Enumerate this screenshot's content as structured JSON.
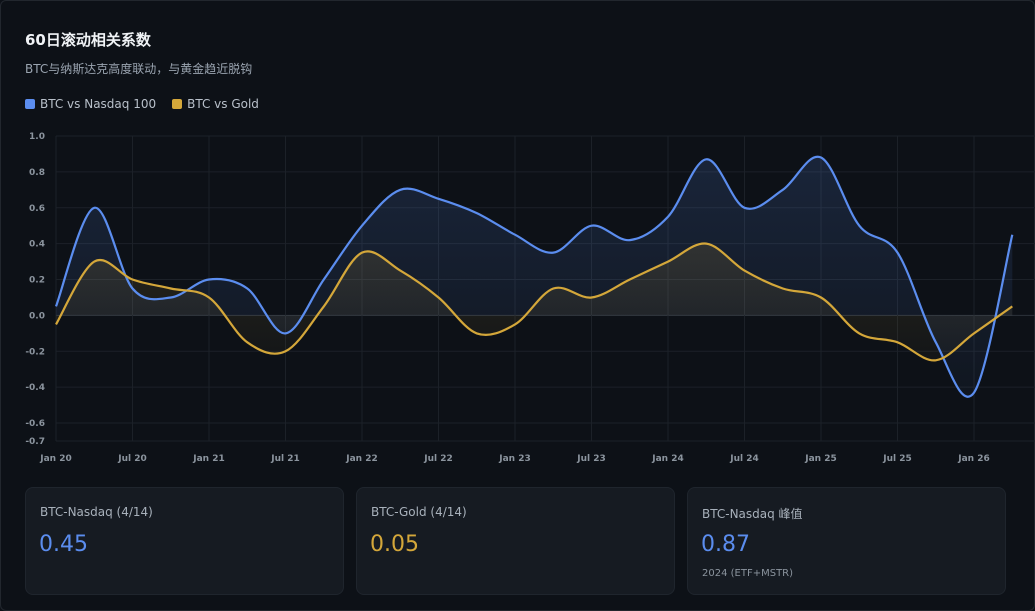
{
  "title": "60日滚动相关系数",
  "subtitle": "BTC与纳斯达克高度联动，与黄金趋近脱钩",
  "colors": {
    "nasdaq": "#5b8def",
    "gold": "#d4a73a",
    "background": "#0d1117",
    "grid": "#1e242c"
  },
  "chart_data": {
    "type": "line",
    "title": "60日滚动相关系数",
    "ylim": [
      -0.7,
      1.0
    ],
    "y_ticks": [
      "1.0",
      "0.8",
      "0.6",
      "0.4",
      "0.2",
      "0.0",
      "-0.2",
      "-0.4",
      "-0.6",
      "-0.7"
    ],
    "x_ticks": [
      "Jan 20",
      "Jul 20",
      "Jan 21",
      "Jul 21",
      "Jan 22",
      "Jul 22",
      "Jan 23",
      "Jul 23",
      "Jan 24",
      "Jul 24",
      "Jan 25",
      "Jul 25",
      "Jan 26"
    ],
    "grid": true,
    "legend_position": "top-left",
    "series": [
      {
        "name": "BTC vs Nasdaq 100",
        "color": "#5b8def",
        "points": [
          [
            0,
            0.05
          ],
          [
            0.5,
            0.6
          ],
          [
            1,
            0.15
          ],
          [
            1.5,
            0.1
          ],
          [
            2,
            0.2
          ],
          [
            2.5,
            0.15
          ],
          [
            3,
            -0.1
          ],
          [
            3.5,
            0.2
          ],
          [
            4,
            0.5
          ],
          [
            4.5,
            0.7
          ],
          [
            5,
            0.65
          ],
          [
            5.5,
            0.57
          ],
          [
            6,
            0.45
          ],
          [
            6.5,
            0.35
          ],
          [
            7,
            0.5
          ],
          [
            7.5,
            0.42
          ],
          [
            8,
            0.55
          ],
          [
            8.5,
            0.87
          ],
          [
            9,
            0.6
          ],
          [
            9.5,
            0.7
          ],
          [
            10,
            0.88
          ],
          [
            10.5,
            0.5
          ],
          [
            11,
            0.35
          ],
          [
            11.5,
            -0.15
          ],
          [
            12,
            -0.43
          ],
          [
            12.5,
            0.45
          ]
        ]
      },
      {
        "name": "BTC vs Gold",
        "color": "#d4a73a",
        "points": [
          [
            0,
            -0.05
          ],
          [
            0.5,
            0.3
          ],
          [
            1,
            0.2
          ],
          [
            1.5,
            0.15
          ],
          [
            2,
            0.1
          ],
          [
            2.5,
            -0.15
          ],
          [
            3,
            -0.2
          ],
          [
            3.5,
            0.05
          ],
          [
            4,
            0.35
          ],
          [
            4.5,
            0.25
          ],
          [
            5,
            0.1
          ],
          [
            5.5,
            -0.1
          ],
          [
            6,
            -0.05
          ],
          [
            6.5,
            0.15
          ],
          [
            7,
            0.1
          ],
          [
            7.5,
            0.2
          ],
          [
            8,
            0.3
          ],
          [
            8.5,
            0.4
          ],
          [
            9,
            0.25
          ],
          [
            9.5,
            0.15
          ],
          [
            10,
            0.1
          ],
          [
            10.5,
            -0.1
          ],
          [
            11,
            -0.15
          ],
          [
            11.5,
            -0.25
          ],
          [
            12,
            -0.1
          ],
          [
            12.5,
            0.05
          ]
        ]
      }
    ]
  },
  "cards": [
    {
      "label": "BTC-Nasdaq (4/14)",
      "value": "0.45",
      "note": ""
    },
    {
      "label": "BTC-Gold (4/14)",
      "value": "0.05",
      "note": ""
    },
    {
      "label": "BTC-Nasdaq 峰值",
      "value": "0.87",
      "note": "2024 (ETF+MSTR)"
    }
  ]
}
